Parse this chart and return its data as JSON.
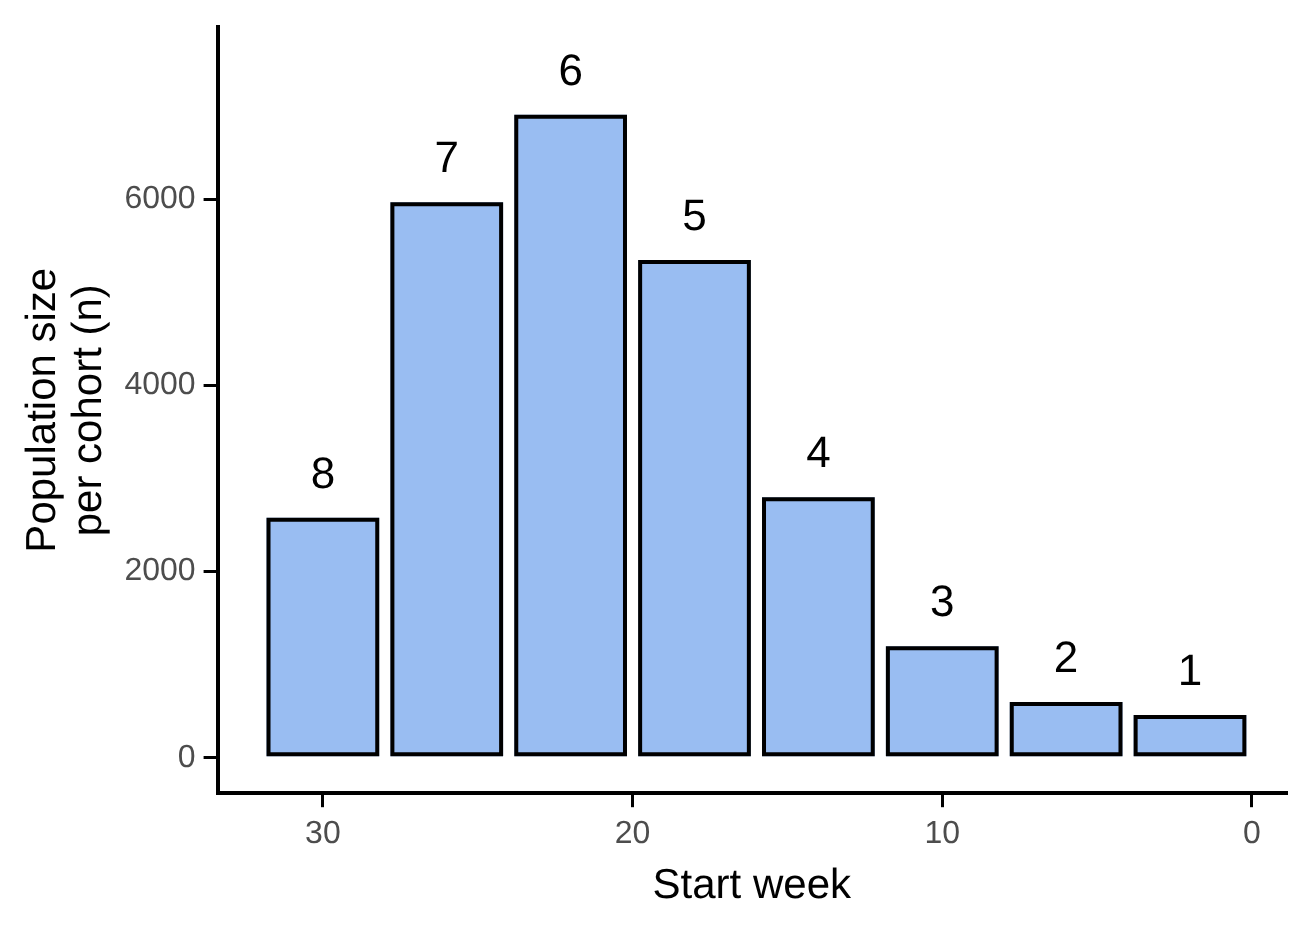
{
  "chart_data": {
    "type": "bar",
    "xlabel": "Start week",
    "ylabel": "Population size\nper cohort (n)",
    "x": [
      30,
      26,
      22,
      18,
      14,
      10,
      6,
      2
    ],
    "values": [
      2580,
      5970,
      6910,
      5350,
      2800,
      1200,
      600,
      460
    ],
    "color": "#99bdf2",
    "xlim": [
      33.4,
      -1.1
    ],
    "xticks": [
      30,
      20,
      10,
      0
    ],
    "ylim": [
      -380,
      7850
    ],
    "yticks": [
      0,
      2000,
      4000,
      6000
    ],
    "grid": false,
    "legend": false,
    "annotations": [
      {
        "text": "8",
        "x": 30,
        "y": 2580
      },
      {
        "text": "7",
        "x": 26,
        "y": 5970
      },
      {
        "text": "6",
        "x": 22,
        "y": 6910
      },
      {
        "text": "5",
        "x": 18,
        "y": 5350
      },
      {
        "text": "4",
        "x": 14,
        "y": 2800
      },
      {
        "text": "3",
        "x": 10,
        "y": 1200
      },
      {
        "text": "2",
        "x": 6,
        "y": 600
      },
      {
        "text": "1",
        "x": 2,
        "y": 460
      }
    ]
  }
}
